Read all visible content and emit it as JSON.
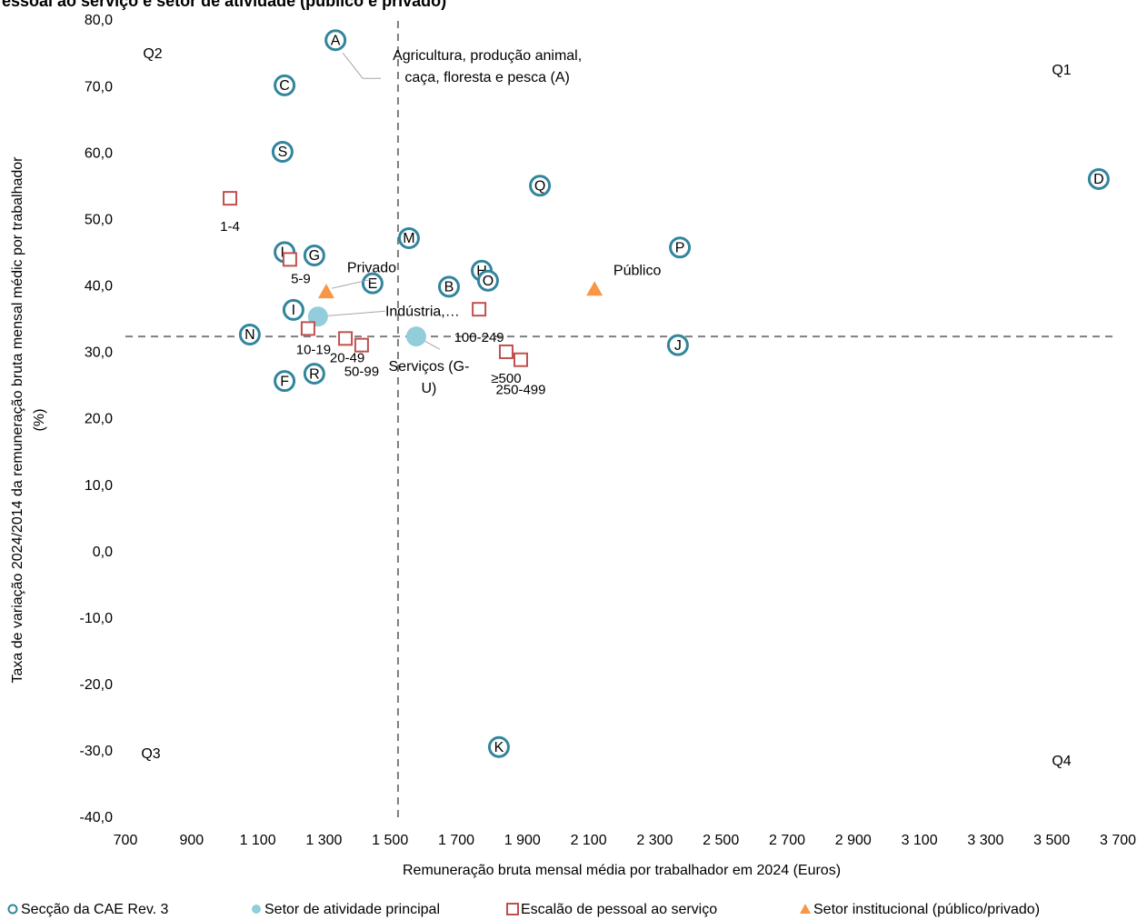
{
  "chart_data": {
    "type": "scatter",
    "title": "essoal ao serviço e setor de atividade (público e privado)",
    "xlabel": "Remuneração bruta mensal média por trabalhador em 2024 (Euros)",
    "ylabel": [
      "Taxa de variação 2024/2014 da remuneração bruta mensal médic por trabalhador",
      "(%)"
    ],
    "xlim": [
      700,
      3700
    ],
    "ylim": [
      -40,
      80
    ],
    "xticks": [
      700,
      900,
      {
        "value": 1100,
        "label": "1 100"
      },
      {
        "value": 1300,
        "label": "1 300"
      },
      {
        "value": 1500,
        "label": "1 500"
      },
      {
        "value": 1700,
        "label": "1 700"
      },
      {
        "value": 1900,
        "label": "1 900"
      },
      {
        "value": 2100,
        "label": "2 100"
      },
      {
        "value": 2300,
        "label": "2 300"
      },
      {
        "value": 2500,
        "label": "2 500"
      },
      {
        "value": 2700,
        "label": "2 700"
      },
      {
        "value": 2900,
        "label": "2 900"
      },
      {
        "value": 3100,
        "label": "3 100"
      },
      {
        "value": 3300,
        "label": "3 300"
      },
      {
        "value": 3500,
        "label": "3 500"
      },
      {
        "value": 3700,
        "label": "3 700"
      }
    ],
    "yticks": [
      {
        "value": 80,
        "label": "80,0"
      },
      {
        "value": 70,
        "label": "70,0"
      },
      {
        "value": 60,
        "label": "60,0"
      },
      {
        "value": 50,
        "label": "50,0"
      },
      {
        "value": 40,
        "label": "40,0"
      },
      {
        "value": 30,
        "label": "30,0"
      },
      {
        "value": 20,
        "label": "20,0"
      },
      {
        "value": 10,
        "label": "10,0"
      },
      {
        "value": 0,
        "label": "0,0"
      },
      {
        "value": -10,
        "label": "-10,0"
      },
      {
        "value": -20,
        "label": "-20,0"
      },
      {
        "value": -30,
        "label": "-30,0"
      },
      {
        "value": -40,
        "label": "-40,0"
      }
    ],
    "reference_x": 1524,
    "reference_y": 32.5,
    "quadrant_labels": [
      "Q1",
      "Q2",
      "Q3",
      "Q4"
    ],
    "series": [
      {
        "name": "Secção da CAE Rev. 3",
        "marker": "circle",
        "color": "#31859c",
        "labels": [
          "A",
          "C",
          "S",
          "Q",
          "D",
          "M",
          "P",
          "L",
          "G",
          "H",
          "O",
          "B",
          "E",
          "I",
          "N",
          "J",
          "F",
          "R",
          "K"
        ],
        "x": [
          1335,
          1181,
          1175,
          1953,
          3642,
          1557,
          2376,
          1181,
          1271,
          1777,
          1796,
          1678,
          1447,
          1208,
          1076,
          2370,
          1181,
          1271,
          1829
        ],
        "values": [
          77.1,
          70.3,
          60.3,
          55.2,
          56.2,
          47.3,
          45.9,
          45.2,
          44.7,
          42.4,
          40.9,
          40.0,
          40.5,
          36.5,
          32.8,
          31.2,
          25.8,
          26.9,
          -29.3
        ]
      },
      {
        "name": "Setor de atividade principal",
        "marker": "dot",
        "color": "#92cddc",
        "labels": [
          "Agricultura, produção animal, caça, floresta e pesca (A)",
          "Indústria,…",
          "Serviços (G-U)"
        ],
        "x": [
          1335,
          1282,
          1579
        ],
        "values": [
          77.1,
          35.5,
          32.5
        ]
      },
      {
        "name": "Escalão de pessoal ao serviço",
        "marker": "square",
        "color": "#c0504d",
        "labels": [
          "1-4",
          "5-9",
          "10-19",
          "20-49",
          "50-99",
          "100-249",
          "≥500",
          "250-499"
        ],
        "x": [
          1016,
          1197,
          1252,
          1365,
          1414,
          1769,
          1851,
          1895
        ],
        "values": [
          53.3,
          44.1,
          33.7,
          32.2,
          31.2,
          36.6,
          30.2,
          29.0
        ]
      },
      {
        "name": "Setor institucional (público/privado)",
        "marker": "triangle",
        "color": "#f79646",
        "labels": [
          "Privado",
          "Público"
        ],
        "x": [
          1307,
          2118
        ],
        "values": [
          39.2,
          39.6
        ]
      }
    ]
  }
}
